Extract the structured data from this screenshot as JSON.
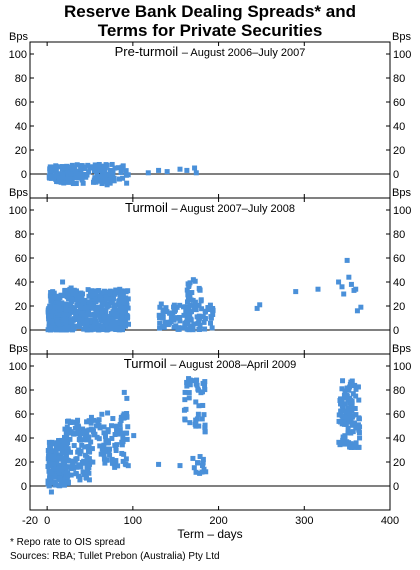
{
  "title_line1": "Reserve Bank Dealing Spreads* and",
  "title_line2": "Terms for Private Securities",
  "footnote": "*   Repo rate to OIS spread",
  "sources": "Sources: RBA; Tullet Prebon (Australia) Pty Ltd",
  "colors": {
    "marker": "#4a90d9",
    "frame": "#000000"
  },
  "chart_data": {
    "type": "scatter",
    "xlabel": "Term – days",
    "xlim": [
      -20,
      400
    ],
    "x_ticks": [
      "-20",
      "0",
      "100",
      "200",
      "300",
      "400"
    ],
    "yunit": "Bps",
    "ylim": [
      -20,
      110
    ],
    "y_ticks": [
      "0",
      "20",
      "40",
      "60",
      "80",
      "100"
    ],
    "panels": [
      {
        "name": "Pre-turmoil",
        "period": "August 2006–July 2007",
        "clusters": [
          {
            "x": [
              2,
              95
            ],
            "y": [
              -8,
              8
            ],
            "n": 140
          },
          {
            "x": [
              2,
              40
            ],
            "y": [
              -4,
              6
            ],
            "n": 60
          }
        ],
        "points": [
          [
            118,
            1
          ],
          [
            130,
            3
          ],
          [
            140,
            2
          ],
          [
            155,
            4
          ],
          [
            163,
            3
          ],
          [
            172,
            5
          ],
          [
            174,
            1
          ],
          [
            70,
            -9
          ],
          [
            60,
            -6
          ],
          [
            25,
            -7
          ]
        ]
      },
      {
        "name": "Turmoil",
        "period": "August 2007–July 2008",
        "clusters": [
          {
            "x": [
              1,
              95
            ],
            "y": [
              0,
              34
            ],
            "n": 520
          },
          {
            "x": [
              1,
              30
            ],
            "y": [
              0,
              20
            ],
            "n": 120
          },
          {
            "x": [
              130,
              195
            ],
            "y": [
              0,
              22
            ],
            "n": 110
          },
          {
            "x": [
              163,
              180
            ],
            "y": [
              20,
              42
            ],
            "n": 20
          }
        ],
        "points": [
          [
            245,
            18
          ],
          [
            248,
            21
          ],
          [
            290,
            32
          ],
          [
            316,
            34
          ],
          [
            340,
            40
          ],
          [
            344,
            36
          ],
          [
            346,
            30
          ],
          [
            350,
            58
          ],
          [
            352,
            44
          ],
          [
            355,
            38
          ],
          [
            358,
            33
          ],
          [
            360,
            34
          ],
          [
            362,
            16
          ],
          [
            366,
            19
          ],
          [
            18,
            40
          ],
          [
            28,
            35
          ]
        ]
      },
      {
        "name": "Turmoil",
        "period": "August 2008–April 2009",
        "clusters": [
          {
            "x": [
              1,
              25
            ],
            "y": [
              0,
              38
            ],
            "n": 170
          },
          {
            "x": [
              20,
              50
            ],
            "y": [
              5,
              55
            ],
            "n": 110
          },
          {
            "x": [
              50,
              95
            ],
            "y": [
              15,
              62
            ],
            "n": 90
          },
          {
            "x": [
              160,
              185
            ],
            "y": [
              45,
              90
            ],
            "n": 45
          },
          {
            "x": [
              165,
              185
            ],
            "y": [
              10,
              25
            ],
            "n": 12
          },
          {
            "x": [
              340,
              365
            ],
            "y": [
              32,
              88
            ],
            "n": 110
          }
        ],
        "points": [
          [
            5,
            -5
          ],
          [
            130,
            18
          ],
          [
            155,
            17
          ],
          [
            183,
            14
          ],
          [
            101,
            42
          ],
          [
            90,
            78
          ],
          [
            93,
            73
          ]
        ]
      }
    ]
  }
}
